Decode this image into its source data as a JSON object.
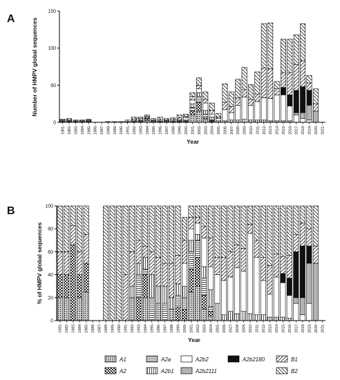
{
  "series_meta": [
    {
      "name": "A1",
      "fill": "url(#pat-A1)"
    },
    {
      "name": "A2",
      "fill": "url(#pat-A2)"
    },
    {
      "name": "A2a",
      "fill": "url(#pat-A2a)"
    },
    {
      "name": "A2b1",
      "fill": "url(#pat-A2b1)"
    },
    {
      "name": "A2b2",
      "fill": "#ffffff"
    },
    {
      "name": "A2b2111",
      "fill": "#b3b3b3"
    },
    {
      "name": "A2b2180",
      "fill": "#111111"
    },
    {
      "name": "B1",
      "fill": "url(#pat-B1)"
    },
    {
      "name": "B2",
      "fill": "url(#pat-B2)"
    }
  ],
  "chart_data": [
    {
      "type": "bar",
      "stacked": true,
      "panel_label": "A",
      "ylabel": "Number of HMPV global sequences",
      "xlabel": "Year",
      "ylim": [
        0,
        150
      ],
      "yticks": [
        0,
        50,
        100,
        150
      ],
      "grid": false,
      "categories": [
        "1981",
        "1982",
        "1983",
        "1984",
        "1985",
        "1986",
        "1987",
        "1988",
        "1989",
        "1990",
        "1991",
        "1992",
        "1993",
        "1994",
        "1995",
        "1996",
        "1997",
        "1998",
        "1999",
        "2000",
        "2001",
        "2002",
        "2003",
        "2004",
        "2005",
        "2006",
        "2007",
        "2008",
        "2009",
        "2010",
        "2011",
        "2012",
        "2013",
        "2014",
        "2015",
        "2016",
        "2017",
        "2018",
        "2019",
        "2020",
        "2021"
      ],
      "series": [
        {
          "name": "A1",
          "values": [
            1,
            1,
            0,
            1,
            1,
            0,
            0,
            0,
            0,
            0,
            0,
            1,
            0,
            2,
            0,
            1,
            0,
            1,
            0,
            0,
            10,
            15,
            4,
            1,
            0,
            0,
            0,
            0,
            0,
            0,
            0,
            0,
            0,
            0,
            0,
            0,
            0,
            0,
            0,
            0,
            0
          ]
        },
        {
          "name": "A2",
          "values": [
            1,
            1,
            1,
            1,
            1,
            0,
            0,
            0,
            0,
            0,
            0,
            0,
            1,
            2,
            0,
            0,
            0,
            0,
            1,
            1,
            5,
            12,
            2,
            1,
            0,
            0,
            0,
            0,
            0,
            0,
            0,
            0,
            0,
            0,
            0,
            0,
            0,
            0,
            0,
            0,
            0
          ]
        },
        {
          "name": "A2a",
          "values": [
            0,
            0,
            0,
            0,
            0,
            0,
            0,
            0,
            0,
            0,
            0,
            0,
            1,
            1,
            1,
            0,
            1,
            0,
            1,
            1,
            5,
            8,
            5,
            1,
            0,
            0,
            0,
            0,
            0,
            0,
            0,
            0,
            0,
            0,
            0,
            0,
            0,
            0,
            0,
            0,
            0
          ]
        },
        {
          "name": "A2b1",
          "values": [
            0,
            0,
            0,
            0,
            0,
            0,
            0,
            0,
            0,
            0,
            0,
            1,
            1,
            1,
            1,
            1,
            1,
            1,
            1,
            1,
            5,
            5,
            5,
            4,
            2,
            2,
            3,
            3,
            4,
            3,
            3,
            3,
            2,
            2,
            2,
            2,
            0,
            0,
            0,
            0,
            0
          ]
        },
        {
          "name": "A2b2",
          "values": [
            0,
            0,
            0,
            0,
            0,
            0,
            0,
            0,
            0,
            0,
            0,
            0,
            0,
            0,
            0,
            0,
            0,
            0,
            0,
            3,
            5,
            5,
            10,
            4,
            3,
            15,
            10,
            20,
            30,
            20,
            25,
            30,
            30,
            35,
            35,
            20,
            10,
            5,
            3,
            0,
            0
          ]
        },
        {
          "name": "A2b2111",
          "values": [
            0,
            0,
            0,
            0,
            0,
            0,
            0,
            0,
            0,
            0,
            0,
            0,
            0,
            0,
            0,
            0,
            0,
            0,
            0,
            0,
            0,
            0,
            0,
            0,
            0,
            0,
            0,
            0,
            0,
            0,
            0,
            0,
            0,
            0,
            0,
            0,
            3,
            8,
            20,
            15,
            0
          ]
        },
        {
          "name": "A2b2180",
          "values": [
            0,
            0,
            0,
            0,
            0,
            0,
            0,
            0,
            0,
            0,
            0,
            0,
            0,
            0,
            0,
            0,
            0,
            0,
            0,
            0,
            0,
            0,
            0,
            0,
            0,
            0,
            0,
            0,
            0,
            0,
            0,
            0,
            0,
            0,
            10,
            15,
            30,
            35,
            20,
            0,
            0
          ]
        },
        {
          "name": "B1",
          "values": [
            1,
            1,
            1,
            1,
            1,
            0,
            0,
            0,
            0,
            0,
            1,
            2,
            2,
            2,
            1,
            2,
            1,
            2,
            3,
            2,
            5,
            5,
            5,
            5,
            2,
            10,
            8,
            10,
            10,
            8,
            10,
            40,
            40,
            8,
            20,
            30,
            35,
            35,
            10,
            10,
            0
          ]
        },
        {
          "name": "B2",
          "values": [
            1,
            2,
            1,
            0,
            1,
            0,
            0,
            1,
            1,
            1,
            2,
            3,
            2,
            2,
            2,
            3,
            2,
            2,
            4,
            3,
            5,
            10,
            10,
            10,
            5,
            25,
            20,
            25,
            30,
            20,
            30,
            60,
            62,
            10,
            45,
            45,
            40,
            50,
            10,
            20,
            0
          ]
        }
      ]
    },
    {
      "type": "bar",
      "stacked": true,
      "panel_label": "B",
      "ylabel": "% of HMPV global sequences",
      "xlabel": "Year",
      "ylim": [
        0,
        100
      ],
      "yticks": [
        0,
        20,
        40,
        60,
        80,
        100
      ],
      "grid": false,
      "categories": [
        "1981",
        "1982",
        "1983",
        "1984",
        "1985",
        "1986",
        "1987",
        "1988",
        "1989",
        "1990",
        "1991",
        "1992",
        "1993",
        "1994",
        "1995",
        "1996",
        "1997",
        "1998",
        "1999",
        "2000",
        "2001",
        "2002",
        "2003",
        "2004",
        "2005",
        "2006",
        "2007",
        "2008",
        "2009",
        "2010",
        "2011",
        "2012",
        "2013",
        "2014",
        "2015",
        "2016",
        "2017",
        "2018",
        "2019",
        "2020",
        "2021"
      ],
      "series": [
        {
          "name": "A1",
          "values": [
            20,
            20,
            0,
            20,
            25,
            0,
            0,
            0,
            0,
            0,
            0,
            20,
            0,
            20,
            0,
            15,
            0,
            10,
            0,
            0,
            25,
            30,
            10,
            4,
            0,
            0,
            0,
            0,
            0,
            0,
            0,
            0,
            0,
            0,
            0,
            0,
            0,
            0,
            0,
            0,
            0
          ]
        },
        {
          "name": "A2",
          "values": [
            20,
            20,
            66,
            20,
            25,
            0,
            0,
            0,
            0,
            0,
            0,
            0,
            20,
            20,
            0,
            0,
            0,
            0,
            12,
            10,
            20,
            25,
            12,
            4,
            0,
            0,
            0,
            0,
            0,
            0,
            0,
            0,
            0,
            0,
            0,
            0,
            0,
            0,
            0,
            0,
            0
          ]
        },
        {
          "name": "A2a",
          "values": [
            0,
            0,
            0,
            0,
            0,
            0,
            0,
            0,
            0,
            0,
            0,
            0,
            20,
            5,
            20,
            0,
            15,
            0,
            10,
            10,
            15,
            15,
            15,
            4,
            0,
            0,
            0,
            0,
            0,
            0,
            0,
            0,
            0,
            0,
            0,
            0,
            0,
            0,
            0,
            0,
            0
          ]
        },
        {
          "name": "A2b1",
          "values": [
            0,
            0,
            0,
            0,
            0,
            0,
            0,
            0,
            0,
            0,
            0,
            10,
            10,
            10,
            20,
            15,
            15,
            10,
            10,
            10,
            10,
            5,
            10,
            15,
            15,
            5,
            8,
            6,
            8,
            6,
            5,
            5,
            3,
            3,
            3,
            2,
            0,
            0,
            0,
            0,
            0
          ]
        },
        {
          "name": "A2b2",
          "values": [
            0,
            0,
            0,
            0,
            0,
            0,
            0,
            0,
            0,
            0,
            0,
            0,
            0,
            0,
            0,
            0,
            0,
            0,
            0,
            20,
            10,
            10,
            25,
            20,
            25,
            30,
            30,
            40,
            35,
            70,
            50,
            30,
            20,
            35,
            30,
            20,
            15,
            5,
            15,
            0,
            0
          ]
        },
        {
          "name": "A2b2111",
          "values": [
            0,
            0,
            0,
            0,
            0,
            0,
            0,
            0,
            0,
            0,
            0,
            0,
            0,
            0,
            0,
            0,
            0,
            0,
            0,
            0,
            0,
            0,
            0,
            0,
            0,
            0,
            0,
            0,
            0,
            0,
            0,
            0,
            0,
            0,
            0,
            0,
            5,
            15,
            35,
            50,
            0
          ]
        },
        {
          "name": "A2b2180",
          "values": [
            0,
            0,
            0,
            0,
            0,
            0,
            0,
            0,
            0,
            0,
            0,
            0,
            0,
            0,
            0,
            0,
            0,
            0,
            0,
            0,
            0,
            0,
            0,
            0,
            0,
            0,
            0,
            0,
            0,
            0,
            0,
            0,
            0,
            0,
            8,
            15,
            40,
            45,
            15,
            0,
            0
          ]
        },
        {
          "name": "B1",
          "values": [
            20,
            20,
            17,
            20,
            25,
            0,
            0,
            0,
            0,
            0,
            40,
            30,
            20,
            10,
            20,
            25,
            20,
            30,
            25,
            20,
            10,
            5,
            10,
            25,
            15,
            20,
            22,
            20,
            20,
            8,
            15,
            20,
            25,
            20,
            15,
            20,
            15,
            20,
            15,
            15,
            0
          ]
        },
        {
          "name": "B2",
          "values": [
            40,
            40,
            17,
            40,
            25,
            0,
            0,
            100,
            100,
            100,
            60,
            40,
            30,
            35,
            40,
            45,
            50,
            50,
            43,
            20,
            10,
            10,
            18,
            28,
            45,
            45,
            40,
            34,
            37,
            16,
            30,
            45,
            52,
            42,
            44,
            43,
            25,
            15,
            20,
            35,
            0
          ]
        }
      ]
    }
  ]
}
